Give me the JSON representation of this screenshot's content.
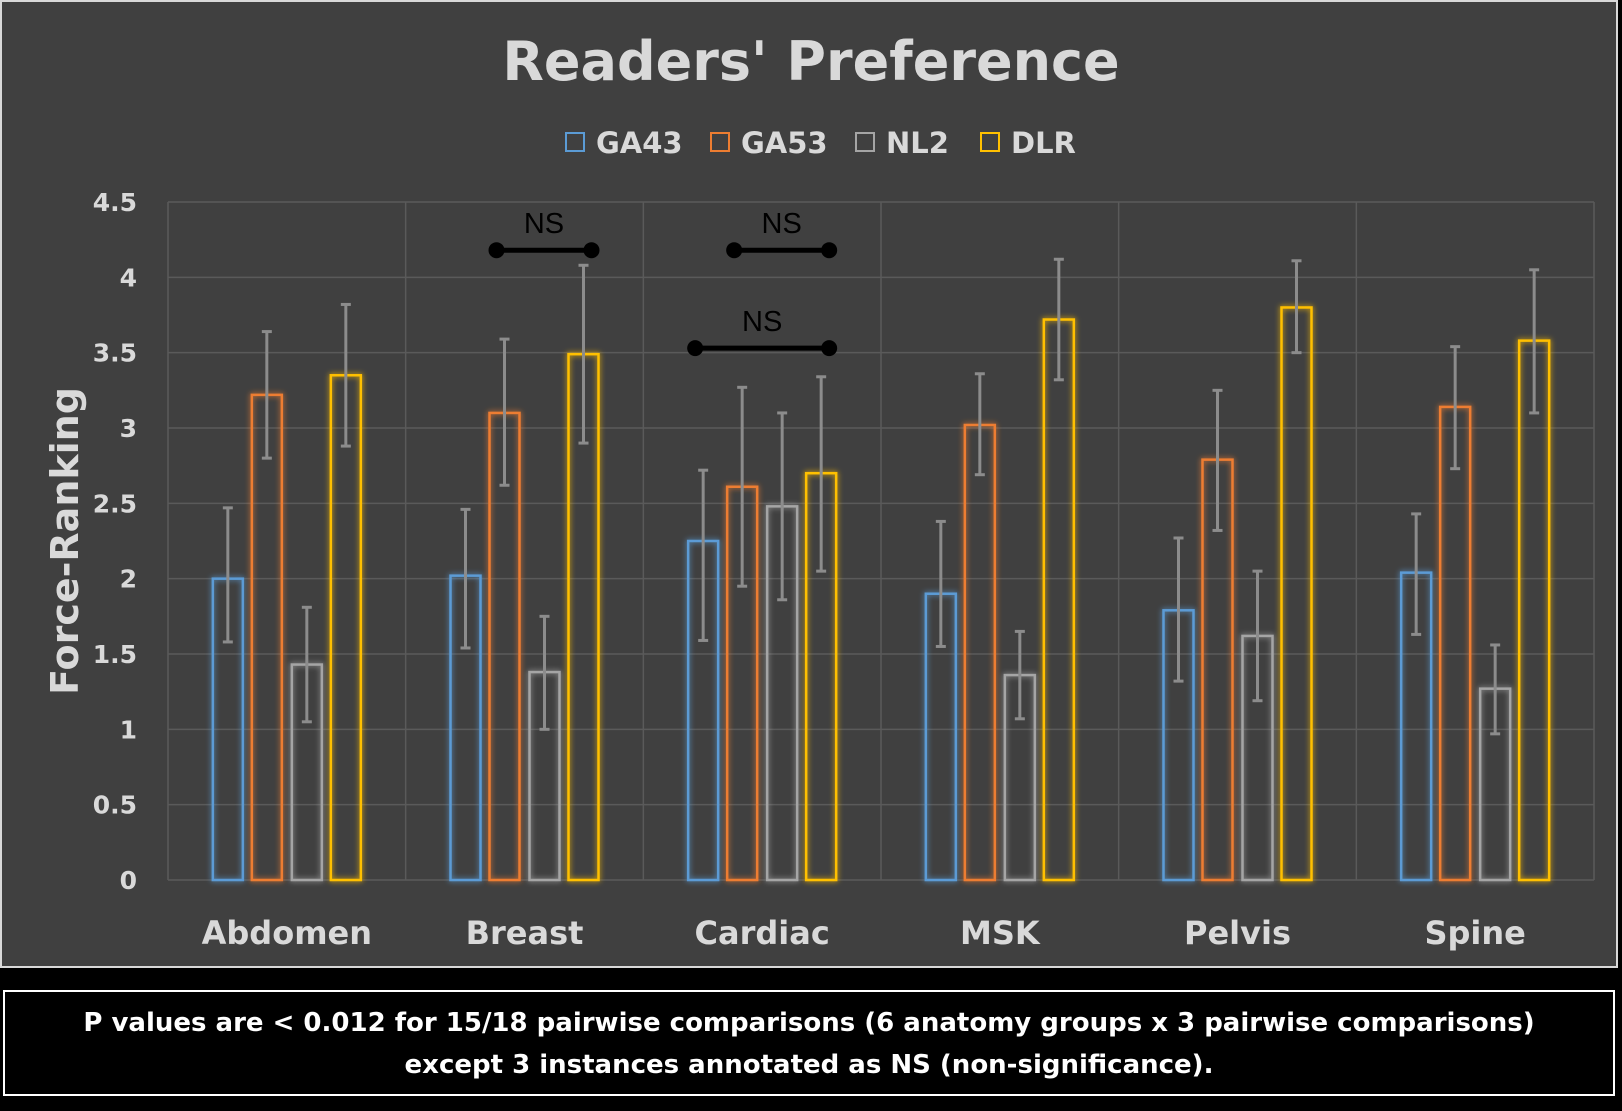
{
  "chart_data": {
    "type": "bar",
    "title": "Readers' Preference",
    "xlabel": "",
    "ylabel": "Force-Ranking",
    "ylim": [
      0,
      4.5
    ],
    "yticks": [
      "0",
      "0.5",
      "1",
      "1.5",
      "2",
      "2.5",
      "3",
      "3.5",
      "4",
      "4.5"
    ],
    "grid": true,
    "legend_position": "top",
    "categories": [
      "Abdomen",
      "Breast",
      "Cardiac",
      "MSK",
      "Pelvis",
      "Spine"
    ],
    "series": [
      {
        "name": "GA43",
        "color": "#5b9bd5",
        "values": [
          2.0,
          2.02,
          2.25,
          1.9,
          1.79,
          2.04
        ],
        "err_low": [
          1.58,
          1.54,
          1.59,
          1.55,
          1.32,
          1.63
        ],
        "err_high": [
          2.47,
          2.46,
          2.72,
          2.38,
          2.27,
          2.43
        ]
      },
      {
        "name": "GA53",
        "color": "#ed7d31",
        "values": [
          3.22,
          3.1,
          2.61,
          3.02,
          2.79,
          3.14
        ],
        "err_low": [
          2.8,
          2.62,
          1.95,
          2.69,
          2.32,
          2.73
        ],
        "err_high": [
          3.64,
          3.59,
          3.27,
          3.36,
          3.25,
          3.54
        ]
      },
      {
        "name": "NL2",
        "color": "#a5a5a5",
        "values": [
          1.43,
          1.38,
          2.48,
          1.36,
          1.62,
          1.27
        ],
        "err_low": [
          1.05,
          1.0,
          1.86,
          1.07,
          1.19,
          0.97
        ],
        "err_high": [
          1.81,
          1.75,
          3.1,
          1.65,
          2.05,
          1.56
        ]
      },
      {
        "name": "DLR",
        "color": "#ffc000",
        "values": [
          3.35,
          3.49,
          2.7,
          3.72,
          3.8,
          3.58
        ],
        "err_low": [
          2.88,
          2.9,
          2.05,
          3.32,
          3.5,
          3.1
        ],
        "err_high": [
          3.82,
          4.08,
          3.34,
          4.12,
          4.11,
          4.05
        ]
      }
    ],
    "annotations": [
      {
        "text": "NS",
        "category": "Breast",
        "from": "GA53",
        "to": "DLR",
        "y": 4.18
      },
      {
        "text": "NS",
        "category": "Cardiac",
        "from": "GA53",
        "to": "DLR",
        "y": 4.18
      },
      {
        "text": "NS",
        "category": "Cardiac",
        "from": "GA43",
        "to": "DLR",
        "y": 3.53
      }
    ]
  },
  "footer": {
    "line1": "P values are  < 0.012 for 15/18 pairwise comparisons (6 anatomy groups x 3 pairwise comparisons)",
    "line2": "except 3 instances annotated as NS (non-significance)."
  }
}
